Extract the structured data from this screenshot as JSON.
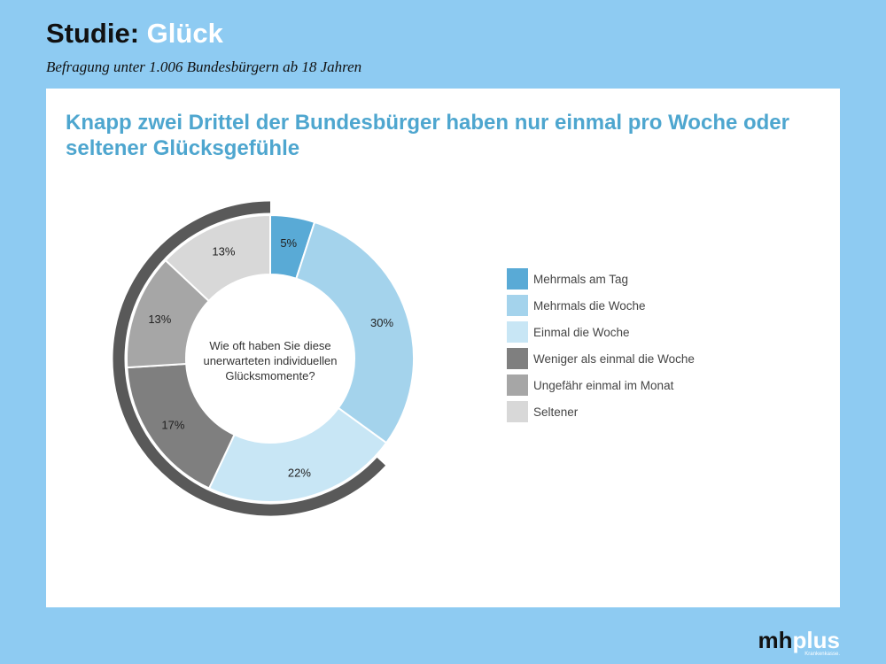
{
  "header": {
    "title_prefix": "Studie: ",
    "title_accent": "Glück",
    "subtitle": "Befragung unter 1.006 Bundesbürgern ab 18 Jahren"
  },
  "panel": {
    "title": "Knapp zwei Drittel der Bundesbürger haben nur einmal pro Woche oder seltener Glücksgefühle"
  },
  "chart_data": {
    "type": "pie",
    "donut": true,
    "center_text": [
      "Wie oft haben Sie diese",
      "unerwarteten individuellen",
      "Glücksmomente?"
    ],
    "categories": [
      "Mehrmals am Tag",
      "Mehrmals die Woche",
      "Einmal die Woche",
      "Weniger als einmal die Woche",
      "Ungefähr einmal im Monat",
      "Seltener"
    ],
    "values": [
      5,
      30,
      22,
      17,
      13,
      13
    ],
    "value_labels": [
      "5%",
      "30%",
      "22%",
      "17%",
      "13%",
      "13%"
    ],
    "colors": [
      "#59aad6",
      "#a4d3ec",
      "#c8e6f5",
      "#7f7f7f",
      "#a6a6a6",
      "#d8d8d8"
    ],
    "highlight_arc_color": "#595959",
    "legend_position": "right"
  },
  "logo": {
    "mh": "mh",
    "plus": "plus",
    "sub": "Krankenkasse."
  }
}
